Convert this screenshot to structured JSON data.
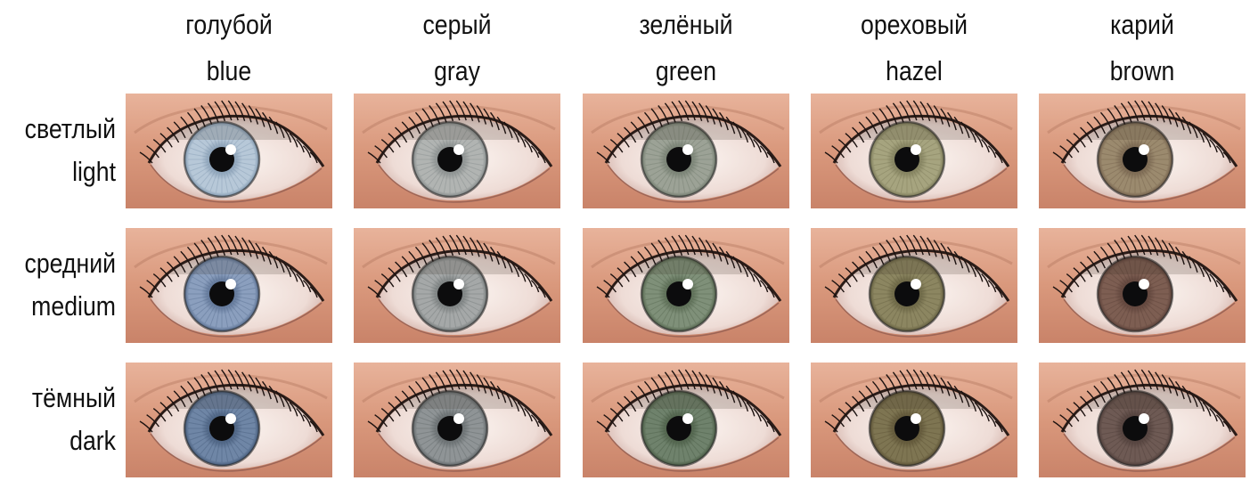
{
  "columns": [
    {
      "ru": "голубой",
      "en": "blue",
      "iris": "#9fb3c8",
      "iris_dark": "#5f7690"
    },
    {
      "ru": "серый",
      "en": "gray",
      "iris": "#a8acad",
      "iris_dark": "#6e7476"
    },
    {
      "ru": "зелёный",
      "en": "green",
      "iris": "#8f9a85",
      "iris_dark": "#5b6a57"
    },
    {
      "ru": "ореховый",
      "en": "hazel",
      "iris": "#9c9a72",
      "iris_dark": "#6c6a48"
    },
    {
      "ru": "карий",
      "en": "brown",
      "iris": "#8f7d62",
      "iris_dark": "#5d4a3a"
    }
  ],
  "rows": [
    {
      "ru": "светлый",
      "en": "light"
    },
    {
      "ru": "средний",
      "en": "medium"
    },
    {
      "ru": "тёмный",
      "en": "dark"
    }
  ],
  "eyes": [
    [
      {
        "iris": "#b7c8d8",
        "iris_dark": "#7b93ab"
      },
      {
        "iris": "#b1b4b2",
        "iris_dark": "#7d8383"
      },
      {
        "iris": "#9ca296",
        "iris_dark": "#6b7567"
      },
      {
        "iris": "#a6a47f",
        "iris_dark": "#757352"
      },
      {
        "iris": "#9b8a6e",
        "iris_dark": "#6e5b47"
      }
    ],
    [
      {
        "iris": "#8b9fbe",
        "iris_dark": "#516789"
      },
      {
        "iris": "#a5a8a8",
        "iris_dark": "#6b7171"
      },
      {
        "iris": "#7f9079",
        "iris_dark": "#4f6048"
      },
      {
        "iris": "#8c8661",
        "iris_dark": "#5f5a3b"
      },
      {
        "iris": "#7d5e52",
        "iris_dark": "#573d35"
      }
    ],
    [
      {
        "iris": "#6f86a6",
        "iris_dark": "#3f5574"
      },
      {
        "iris": "#8f9496",
        "iris_dark": "#5b6163"
      },
      {
        "iris": "#6f826c",
        "iris_dark": "#44563f"
      },
      {
        "iris": "#7e7552",
        "iris_dark": "#564c30"
      },
      {
        "iris": "#6e5a54",
        "iris_dark": "#4a3a36"
      }
    ]
  ]
}
